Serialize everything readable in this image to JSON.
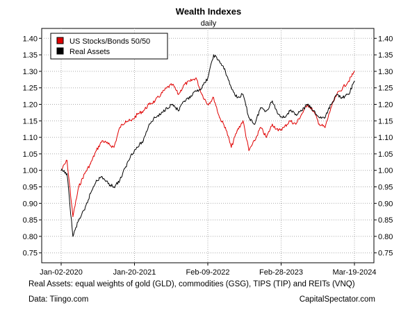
{
  "chart_data": {
    "type": "line",
    "title": "Wealth Indexes",
    "subtitle": "daily",
    "xlabel": "",
    "ylabel": "",
    "ylim": [
      0.72,
      1.43
    ],
    "y_ticks": [
      "0.75",
      "0.80",
      "0.85",
      "0.90",
      "0.95",
      "1.00",
      "1.05",
      "1.10",
      "1.15",
      "1.20",
      "1.25",
      "1.30",
      "1.35",
      "1.40"
    ],
    "x_ticks": [
      "Jan-02-2020",
      "Jan-20-2021",
      "Feb-09-2022",
      "Feb-28-2023",
      "Mar-19-2024"
    ],
    "x_range": [
      "Jan-02-2020",
      "Mar-19-2024"
    ],
    "grid": true,
    "legend_position": "top-left",
    "x": [
      "2020-01",
      "2020-02",
      "2020-03",
      "2020-04",
      "2020-05",
      "2020-06",
      "2020-07",
      "2020-08",
      "2020-09",
      "2020-10",
      "2020-11",
      "2020-12",
      "2021-01",
      "2021-02",
      "2021-03",
      "2021-04",
      "2021-05",
      "2021-06",
      "2021-07",
      "2021-08",
      "2021-09",
      "2021-10",
      "2021-11",
      "2021-12",
      "2022-01",
      "2022-02",
      "2022-03",
      "2022-04",
      "2022-05",
      "2022-06",
      "2022-07",
      "2022-08",
      "2022-09",
      "2022-10",
      "2022-11",
      "2022-12",
      "2023-01",
      "2023-02",
      "2023-03",
      "2023-04",
      "2023-05",
      "2023-06",
      "2023-07",
      "2023-08",
      "2023-09",
      "2023-10",
      "2023-11",
      "2023-12",
      "2024-01",
      "2024-02",
      "2024-03"
    ],
    "series": [
      {
        "name": "US Stocks/Bonds 50/50",
        "color": "#e00000",
        "values": [
          1.0,
          1.03,
          0.86,
          0.95,
          0.99,
          1.02,
          1.06,
          1.09,
          1.08,
          1.07,
          1.13,
          1.15,
          1.15,
          1.17,
          1.18,
          1.2,
          1.21,
          1.23,
          1.25,
          1.26,
          1.23,
          1.26,
          1.27,
          1.28,
          1.23,
          1.2,
          1.22,
          1.16,
          1.13,
          1.07,
          1.12,
          1.15,
          1.06,
          1.09,
          1.13,
          1.1,
          1.14,
          1.12,
          1.13,
          1.15,
          1.14,
          1.17,
          1.2,
          1.18,
          1.14,
          1.13,
          1.19,
          1.23,
          1.25,
          1.27,
          1.3
        ]
      },
      {
        "name": "Real Assets",
        "color": "#000000",
        "values": [
          1.0,
          0.99,
          0.8,
          0.85,
          0.88,
          0.93,
          0.97,
          0.98,
          0.96,
          0.95,
          0.97,
          1.01,
          1.05,
          1.07,
          1.09,
          1.14,
          1.16,
          1.17,
          1.19,
          1.2,
          1.18,
          1.21,
          1.22,
          1.24,
          1.25,
          1.28,
          1.35,
          1.33,
          1.3,
          1.25,
          1.22,
          1.23,
          1.16,
          1.14,
          1.19,
          1.18,
          1.21,
          1.17,
          1.16,
          1.18,
          1.17,
          1.18,
          1.2,
          1.18,
          1.16,
          1.16,
          1.2,
          1.23,
          1.22,
          1.23,
          1.27
        ]
      }
    ],
    "legend": [
      "US Stocks/Bonds 50/50",
      "Real Assets"
    ]
  },
  "footnotes": {
    "real_assets": "Real Assets: equal weights of gold (GLD), commodities (GSG), TIPS (TIP) and REITs (VNQ)",
    "source": "Data: Tiingo.com",
    "site": "CapitalSpectator.com"
  }
}
